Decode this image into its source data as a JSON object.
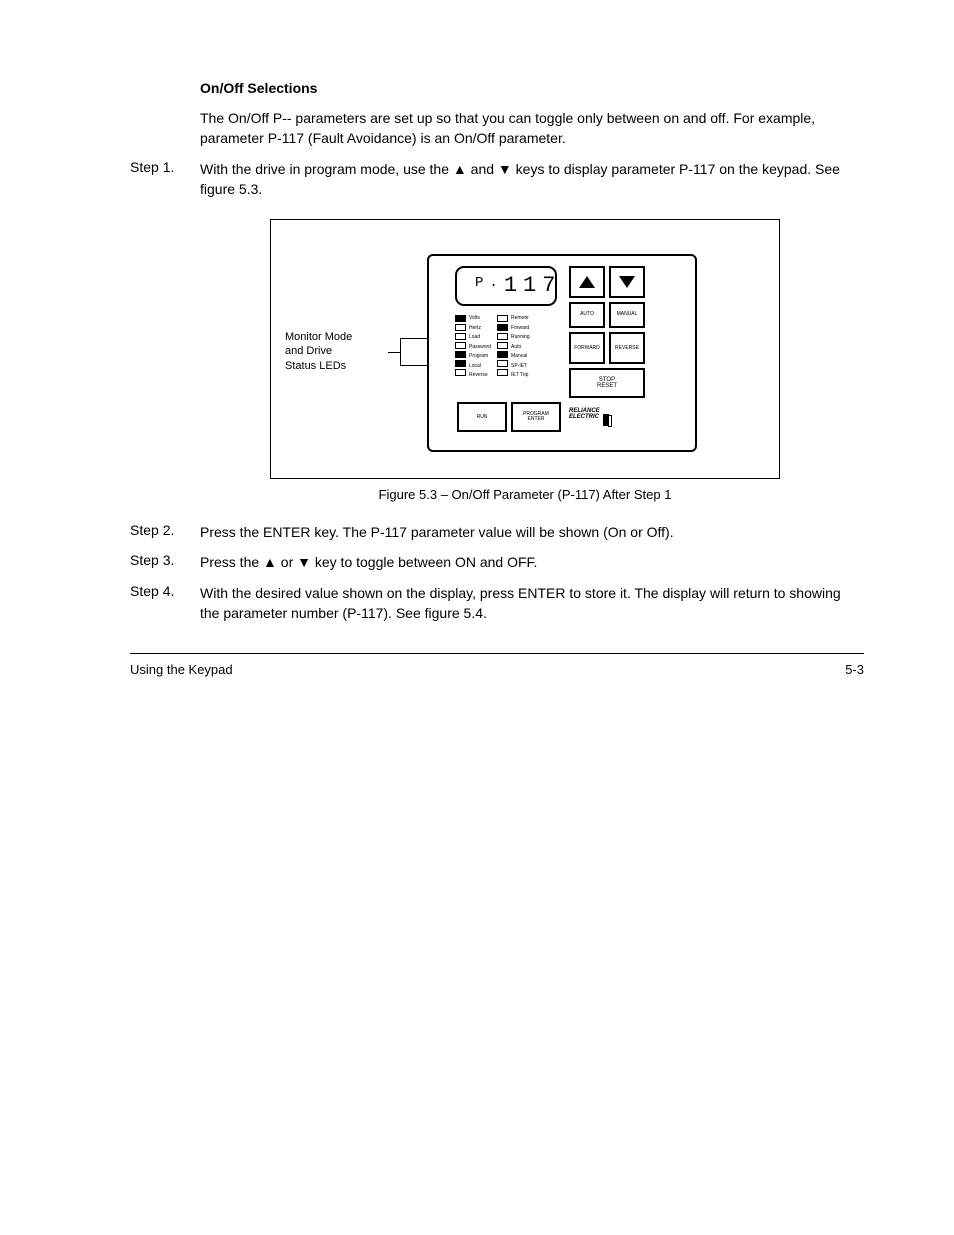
{
  "step2": {
    "label": "Step 2.",
    "text": "Press the ENTER key. The P-117 parameter value will be shown (On or Off)."
  },
  "step3": {
    "label": "Step 3.",
    "text_a": "Press the ",
    "text_b": " or ",
    "text_c": " key to toggle between ON and OFF."
  },
  "onoff": {
    "heading": "On/Off Selections",
    "para1": "The On/Off P-- parameters are set up so that you can toggle only between on and off. For example, parameter P-117 (Fault Avoidance) is an On/Off parameter.",
    "step1_label": "Step 1.",
    "step1_text_a": "With the drive in program mode, use the ",
    "step1_text_b": " and ",
    "step1_text_c": " keys to display parameter P-117 on the keypad. See figure 5.3."
  },
  "figure": {
    "display_value": "117",
    "callout": "Monitor Mode\nand Drive\nStatus LEDs",
    "leds_col1": [
      {
        "label": "Volts",
        "on": true
      },
      {
        "label": "Hertz",
        "on": false
      },
      {
        "label": "Load",
        "on": false
      },
      {
        "label": "Password",
        "on": false
      },
      {
        "label": "Program",
        "on": true
      },
      {
        "label": "Local",
        "on": true
      },
      {
        "label": "Reverse",
        "on": false
      }
    ],
    "leds_col2": [
      {
        "label": "Remote",
        "on": false
      },
      {
        "label": "Forward",
        "on": true
      },
      {
        "label": "Running",
        "on": false
      },
      {
        "label": "Auto",
        "on": false
      },
      {
        "label": "Manual",
        "on": true
      },
      {
        "label": "SP-IET",
        "on": false
      },
      {
        "label": "IET Trip",
        "on": false
      }
    ],
    "buttons": {
      "auto": "AUTO",
      "manual": "MANUAL",
      "forward": "FORWARD",
      "reverse": "REVERSE",
      "stop": "STOP\nRESET",
      "run": "RUN",
      "program": "PROGRAM\nENTER"
    },
    "brand_line1": "RELIANCE",
    "brand_line2": "ELECTRIC",
    "caption": "Figure 5.3 – On/Off Parameter (P-117) After Step 1"
  },
  "step4": {
    "label": "Step 4.",
    "text": "With the desired value shown on the display, press ENTER to store it. The display will return to showing the parameter number (P-117). See figure 5.4."
  },
  "footer": {
    "left": "Using the Keypad",
    "right": "5-3"
  }
}
